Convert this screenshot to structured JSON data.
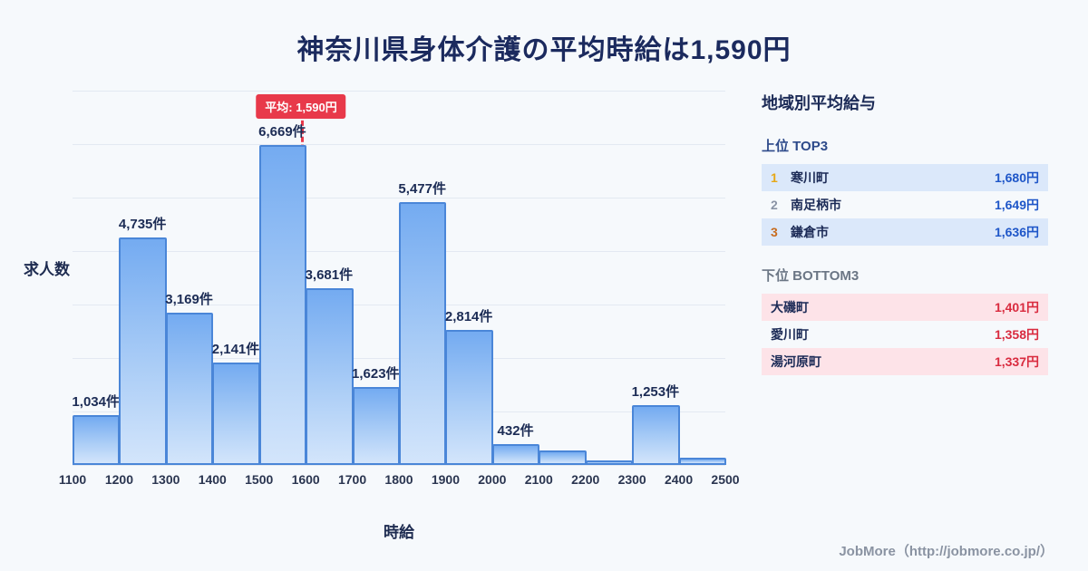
{
  "title": "神奈川県身体介護の平均時給は1,590円",
  "chart_data": {
    "type": "bar",
    "title": "神奈川県身体介護の平均時給は1,590円",
    "xlabel": "時給",
    "ylabel": "求人数",
    "x_tick_labels": [
      "1100",
      "1200",
      "1300",
      "1400",
      "1500",
      "1600",
      "1700",
      "1800",
      "1900",
      "2000",
      "2100",
      "2200",
      "2300",
      "2400",
      "2500"
    ],
    "bin_start": 1100,
    "bin_width": 100,
    "values": [
      1034,
      4735,
      3169,
      2141,
      6669,
      3681,
      1623,
      5477,
      2814,
      432,
      300,
      90,
      1253,
      160
    ],
    "bar_labels": [
      "1,034件",
      "4,735件",
      "3,169件",
      "2,141件",
      "6,669件",
      "3,681件",
      "1,623件",
      "5,477件",
      "2,814件",
      "432件",
      "",
      "",
      "1,253件",
      ""
    ],
    "average_line": {
      "x": 1590,
      "label": "平均: 1,590円"
    },
    "ylim": [
      0,
      7800
    ],
    "grid": true,
    "legend_position": "none",
    "colors": {
      "bar_border": "#4a86d8",
      "bar_fill_top": "#74abf1",
      "bar_fill_bottom": "#d3e5fb",
      "average_line": "#e8394a"
    }
  },
  "sidebar": {
    "title": "地域別平均給与",
    "top_section": {
      "heading": "上位 TOP3",
      "rows": [
        {
          "rank": "1",
          "name": "寒川町",
          "value": "1,680円"
        },
        {
          "rank": "2",
          "name": "南足柄市",
          "value": "1,649円"
        },
        {
          "rank": "3",
          "name": "鎌倉市",
          "value": "1,636円"
        }
      ]
    },
    "bottom_section": {
      "heading": "下位 BOTTOM3",
      "rows": [
        {
          "name": "大磯町",
          "value": "1,401円"
        },
        {
          "name": "愛川町",
          "value": "1,358円"
        },
        {
          "name": "湯河原町",
          "value": "1,337円"
        }
      ]
    }
  },
  "footer": {
    "credit": "JobMore（http://jobmore.co.jp/）"
  }
}
